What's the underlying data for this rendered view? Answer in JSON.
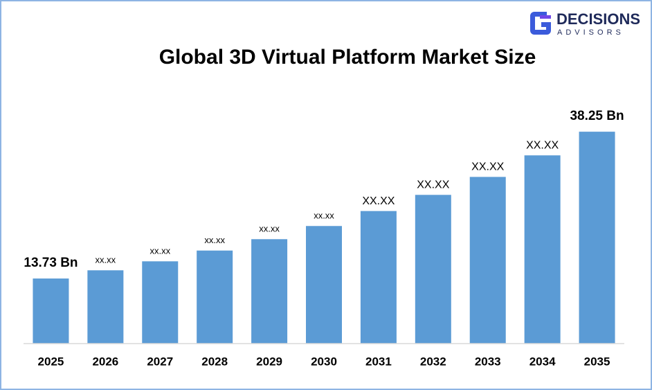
{
  "logo": {
    "name": "DECISIONS",
    "tagline": "ADVISORS"
  },
  "chart_data": {
    "type": "bar",
    "title": "Global 3D Virtual Platform Market Size",
    "categories": [
      "2025",
      "2026",
      "2027",
      "2028",
      "2029",
      "2030",
      "2031",
      "2032",
      "2033",
      "2034",
      "2035"
    ],
    "values": [
      13.73,
      15.1,
      16.6,
      18.4,
      20.3,
      22.5,
      25.0,
      27.7,
      30.7,
      34.3,
      38.25
    ],
    "value_labels": [
      "13.73 Bn",
      "xx.xx",
      "xx.xx",
      "xx.xx",
      "xx.xx",
      "xx.xx",
      "XX.XX",
      "XX.XX",
      "XX.XX",
      "XX.XX",
      "38.25 Bn"
    ],
    "color": "#5b9bd5",
    "ylim": [
      2.86,
      40
    ]
  }
}
